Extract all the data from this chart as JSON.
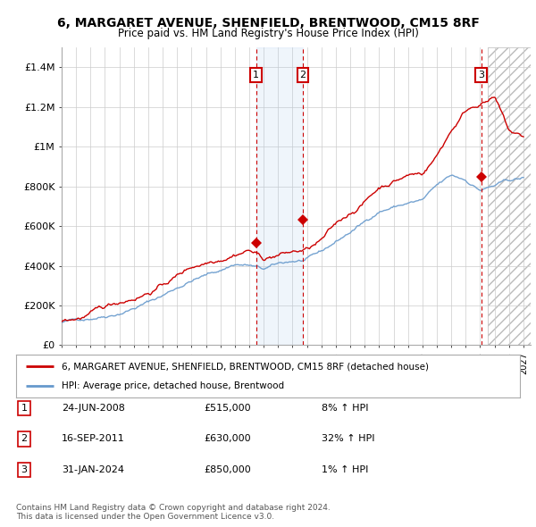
{
  "title": "6, MARGARET AVENUE, SHENFIELD, BRENTWOOD, CM15 8RF",
  "subtitle": "Price paid vs. HM Land Registry's House Price Index (HPI)",
  "xlim_start": 1995.0,
  "xlim_end": 2027.5,
  "ylim": [
    0,
    1500000
  ],
  "yticks": [
    0,
    200000,
    400000,
    600000,
    800000,
    1000000,
    1200000,
    1400000
  ],
  "ytick_labels": [
    "£0",
    "£200K",
    "£400K",
    "£600K",
    "£800K",
    "£1M",
    "£1.2M",
    "£1.4M"
  ],
  "xtick_years": [
    1995,
    1996,
    1997,
    1998,
    1999,
    2000,
    2001,
    2002,
    2003,
    2004,
    2005,
    2006,
    2007,
    2008,
    2009,
    2010,
    2011,
    2012,
    2013,
    2014,
    2015,
    2016,
    2017,
    2018,
    2019,
    2020,
    2021,
    2022,
    2023,
    2024,
    2025,
    2026,
    2027
  ],
  "sale_decimal": [
    2008.47,
    2011.71,
    2024.08
  ],
  "sale_prices": [
    515000,
    630000,
    850000
  ],
  "sale_labels": [
    "1",
    "2",
    "3"
  ],
  "legend_label_red": "6, MARGARET AVENUE, SHENFIELD, BRENTWOOD, CM15 8RF (detached house)",
  "legend_label_blue": "HPI: Average price, detached house, Brentwood",
  "footnote": "Contains HM Land Registry data © Crown copyright and database right 2024.\nThis data is licensed under the Open Government Licence v3.0.",
  "table_rows": [
    {
      "num": "1",
      "date": "24-JUN-2008",
      "price": "£515,000",
      "pct": "8% ↑ HPI"
    },
    {
      "num": "2",
      "date": "16-SEP-2011",
      "price": "£630,000",
      "pct": "32% ↑ HPI"
    },
    {
      "num": "3",
      "date": "31-JAN-2024",
      "price": "£850,000",
      "pct": "1% ↑ HPI"
    }
  ],
  "red_color": "#cc0000",
  "blue_color": "#6699cc",
  "grid_color": "#cccccc",
  "bg_color": "#ffffff",
  "hpi_years": [
    1995,
    1996,
    1997,
    1998,
    1999,
    2000,
    2001,
    2002,
    2003,
    2004,
    2005,
    2006,
    2007,
    2008,
    2009,
    2010,
    2011,
    2012,
    2013,
    2014,
    2015,
    2016,
    2017,
    2018,
    2019,
    2020,
    2021,
    2022,
    2023,
    2024,
    2025,
    2026,
    2027
  ],
  "hpi_prices": [
    115000,
    125000,
    142000,
    162000,
    185000,
    215000,
    245000,
    278000,
    320000,
    360000,
    385000,
    410000,
    445000,
    440000,
    415000,
    435000,
    450000,
    455000,
    485000,
    535000,
    585000,
    635000,
    695000,
    720000,
    740000,
    752000,
    815000,
    860000,
    840000,
    795000,
    815000,
    835000,
    845000
  ],
  "red_prices": [
    118000,
    130000,
    150000,
    170000,
    198000,
    228000,
    262000,
    300000,
    345000,
    390000,
    418000,
    450000,
    488000,
    515000,
    468000,
    488000,
    498000,
    505000,
    542000,
    608000,
    668000,
    728000,
    800000,
    838000,
    868000,
    878000,
    968000,
    1100000,
    1200000,
    1248000,
    1270000,
    1090000,
    1050000
  ]
}
